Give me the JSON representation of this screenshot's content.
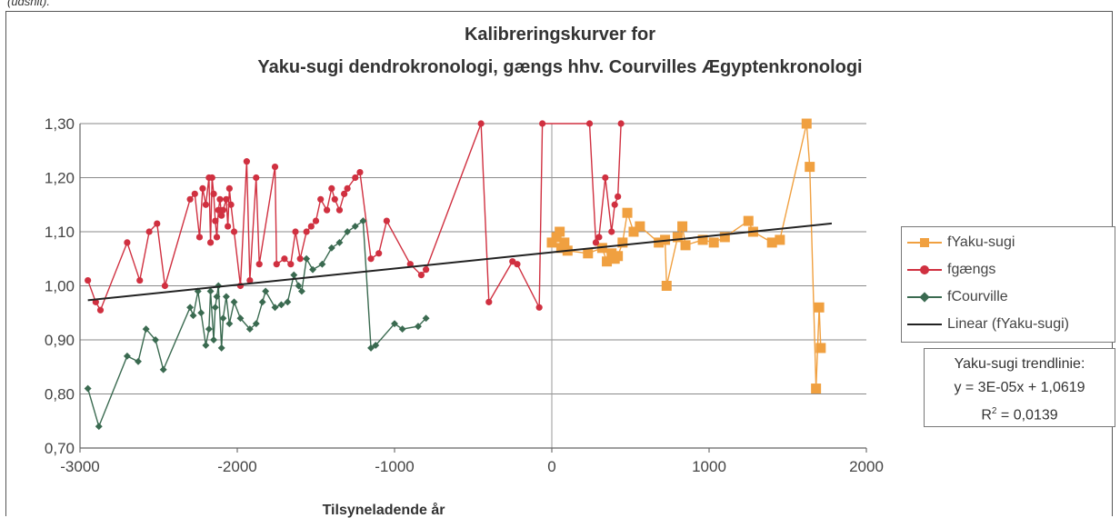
{
  "caption": "(udsnit).",
  "chart_data": {
    "type": "scatter",
    "title_line1": "Kalibreringskurver for",
    "title_line2": "Yaku-sugi dendrokronologi, gængs hhv. Courvilles Ægyptenkronologi",
    "xlabel": "Tilsyneladende år",
    "ylabel": "",
    "xlim": [
      -3000,
      2000
    ],
    "ylim": [
      0.7,
      1.3
    ],
    "xticks": [
      "-3000",
      "-2000",
      "-1000",
      "0",
      "1000",
      "2000"
    ],
    "yticks": [
      "0,70",
      "0,80",
      "0,90",
      "1,00",
      "1,10",
      "1,20",
      "1,30"
    ],
    "grid": true,
    "legend_position": "right",
    "series": [
      {
        "name": "fYaku-sugi",
        "color": "#f0a040",
        "marker": "square",
        "points": [
          [
            0,
            1.08
          ],
          [
            30,
            1.09
          ],
          [
            50,
            1.1
          ],
          [
            60,
            1.07
          ],
          [
            80,
            1.08
          ],
          [
            100,
            1.065
          ],
          [
            230,
            1.06
          ],
          [
            320,
            1.07
          ],
          [
            350,
            1.045
          ],
          [
            380,
            1.06
          ],
          [
            400,
            1.05
          ],
          [
            420,
            1.055
          ],
          [
            450,
            1.08
          ],
          [
            480,
            1.135
          ],
          [
            520,
            1.1
          ],
          [
            560,
            1.11
          ],
          [
            680,
            1.08
          ],
          [
            720,
            1.085
          ],
          [
            730,
            1.0
          ],
          [
            800,
            1.09
          ],
          [
            830,
            1.11
          ],
          [
            850,
            1.075
          ],
          [
            960,
            1.085
          ],
          [
            1030,
            1.08
          ],
          [
            1100,
            1.09
          ],
          [
            1250,
            1.12
          ],
          [
            1280,
            1.1
          ],
          [
            1400,
            1.08
          ],
          [
            1450,
            1.085
          ],
          [
            1620,
            1.3
          ],
          [
            1640,
            1.22
          ],
          [
            1680,
            0.81
          ],
          [
            1700,
            0.96
          ],
          [
            1710,
            0.885
          ]
        ]
      },
      {
        "name": "fgængs",
        "color": "#d03040",
        "marker": "circle",
        "points": [
          [
            -2950,
            1.01
          ],
          [
            -2900,
            0.97
          ],
          [
            -2870,
            0.955
          ],
          [
            -2700,
            1.08
          ],
          [
            -2620,
            1.01
          ],
          [
            -2560,
            1.1
          ],
          [
            -2510,
            1.115
          ],
          [
            -2460,
            1.0
          ],
          [
            -2300,
            1.16
          ],
          [
            -2270,
            1.17
          ],
          [
            -2240,
            1.09
          ],
          [
            -2220,
            1.18
          ],
          [
            -2200,
            1.15
          ],
          [
            -2180,
            1.2
          ],
          [
            -2170,
            1.08
          ],
          [
            -2160,
            1.2
          ],
          [
            -2150,
            1.17
          ],
          [
            -2140,
            1.12
          ],
          [
            -2130,
            1.09
          ],
          [
            -2120,
            1.14
          ],
          [
            -2110,
            1.16
          ],
          [
            -2100,
            1.13
          ],
          [
            -2090,
            1.14
          ],
          [
            -2070,
            1.16
          ],
          [
            -2060,
            1.11
          ],
          [
            -2050,
            1.18
          ],
          [
            -2040,
            1.15
          ],
          [
            -2020,
            1.1
          ],
          [
            -1980,
            1.0
          ],
          [
            -1940,
            1.23
          ],
          [
            -1920,
            1.01
          ],
          [
            -1880,
            1.2
          ],
          [
            -1860,
            1.04
          ],
          [
            -1760,
            1.22
          ],
          [
            -1750,
            1.04
          ],
          [
            -1700,
            1.05
          ],
          [
            -1660,
            1.04
          ],
          [
            -1630,
            1.1
          ],
          [
            -1600,
            1.05
          ],
          [
            -1560,
            1.1
          ],
          [
            -1530,
            1.11
          ],
          [
            -1500,
            1.12
          ],
          [
            -1470,
            1.16
          ],
          [
            -1430,
            1.14
          ],
          [
            -1400,
            1.18
          ],
          [
            -1380,
            1.16
          ],
          [
            -1350,
            1.14
          ],
          [
            -1320,
            1.17
          ],
          [
            -1300,
            1.18
          ],
          [
            -1250,
            1.2
          ],
          [
            -1220,
            1.21
          ],
          [
            -1150,
            1.05
          ],
          [
            -1100,
            1.06
          ],
          [
            -1050,
            1.12
          ],
          [
            -900,
            1.04
          ],
          [
            -830,
            1.02
          ],
          [
            -800,
            1.03
          ],
          [
            -450,
            1.3
          ],
          [
            -400,
            0.97
          ],
          [
            -250,
            1.045
          ],
          [
            -220,
            1.04
          ],
          [
            -80,
            0.96
          ],
          [
            -60,
            1.3
          ],
          [
            240,
            1.3
          ],
          [
            280,
            1.08
          ],
          [
            300,
            1.09
          ],
          [
            340,
            1.2
          ],
          [
            380,
            1.1
          ],
          [
            400,
            1.15
          ],
          [
            420,
            1.165
          ],
          [
            440,
            1.3
          ]
        ]
      },
      {
        "name": "fCourville",
        "color": "#3a6a50",
        "marker": "diamond",
        "points": [
          [
            -2950,
            0.81
          ],
          [
            -2880,
            0.74
          ],
          [
            -2700,
            0.87
          ],
          [
            -2630,
            0.86
          ],
          [
            -2580,
            0.92
          ],
          [
            -2520,
            0.9
          ],
          [
            -2470,
            0.845
          ],
          [
            -2300,
            0.96
          ],
          [
            -2280,
            0.945
          ],
          [
            -2250,
            0.99
          ],
          [
            -2230,
            0.95
          ],
          [
            -2200,
            0.89
          ],
          [
            -2180,
            0.92
          ],
          [
            -2170,
            0.99
          ],
          [
            -2150,
            0.9
          ],
          [
            -2140,
            0.96
          ],
          [
            -2130,
            0.98
          ],
          [
            -2120,
            1.0
          ],
          [
            -2100,
            0.885
          ],
          [
            -2090,
            0.94
          ],
          [
            -2070,
            0.98
          ],
          [
            -2050,
            0.93
          ],
          [
            -2020,
            0.97
          ],
          [
            -1980,
            0.94
          ],
          [
            -1920,
            0.92
          ],
          [
            -1880,
            0.93
          ],
          [
            -1840,
            0.97
          ],
          [
            -1820,
            0.99
          ],
          [
            -1760,
            0.96
          ],
          [
            -1720,
            0.965
          ],
          [
            -1680,
            0.97
          ],
          [
            -1640,
            1.02
          ],
          [
            -1610,
            1.0
          ],
          [
            -1590,
            0.99
          ],
          [
            -1560,
            1.05
          ],
          [
            -1520,
            1.03
          ],
          [
            -1460,
            1.04
          ],
          [
            -1400,
            1.07
          ],
          [
            -1350,
            1.08
          ],
          [
            -1300,
            1.1
          ],
          [
            -1250,
            1.11
          ],
          [
            -1200,
            1.12
          ],
          [
            -1150,
            0.885
          ],
          [
            -1120,
            0.89
          ],
          [
            -1000,
            0.93
          ],
          [
            -950,
            0.92
          ],
          [
            -850,
            0.925
          ],
          [
            -800,
            0.94
          ]
        ]
      }
    ],
    "trendline": {
      "name": "Linear (fYaku-sugi)",
      "color": "#222222",
      "slope": 3e-05,
      "intercept": 1.0619,
      "x_range": [
        -2950,
        1780
      ]
    },
    "trendbox": {
      "line1": "Yaku-sugi trendlinie:",
      "line2": "y = 3E-05x + 1,0619",
      "line3_prefix": "R",
      "line3_sup": "2",
      "line3_suffix": " = 0,0139"
    }
  }
}
